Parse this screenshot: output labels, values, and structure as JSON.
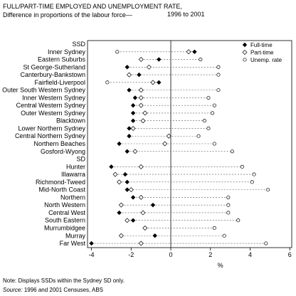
{
  "title_line1": "FULL/PART-TIME EMPLOYED AND UNEMPLOYMENT RATE,",
  "title_line2": "Difference in proportions of the labour force—",
  "period": "1996 to 2001",
  "note": "Note: Displays SSDs within the Sydney SD only.",
  "source_label": "Source:",
  "source_text": "1996 and 2001 Censuses, ABS",
  "chart_data": {
    "type": "scatter",
    "xlabel": "%",
    "xlim": [
      -4.2,
      6.1
    ],
    "xticks": [
      -4,
      -2,
      0,
      2,
      4,
      6
    ],
    "grid": false,
    "legend_position": "top-right",
    "categories": [
      "SSD",
      "Inner Sydney",
      "Eastern Suburbs",
      "St George-Sutherland",
      "Canterbury-Bankstown",
      "Fairfield-Liverpool",
      "Outer South Western Sydney",
      "Inner Western Sydney",
      "Central Western Sydney",
      "Outer Western Sydney",
      "Blacktown",
      "Lower Northern Sydney",
      "Central Northern Sydney",
      "Northern Beaches",
      "Gosford-Wyong",
      "SD",
      "Hunter",
      "Illawarra",
      "Richmond-Tweed",
      "Mid-North Coast",
      "Northern",
      "North Western",
      "Central West",
      "South Eastern",
      "Murrumbidgee",
      "Murray",
      "Far West"
    ],
    "heading_rows": [
      "SSD",
      "SD"
    ],
    "series": [
      {
        "name": "Full-time",
        "marker": "filled-diamond",
        "color": "#000000",
        "values": [
          null,
          1.2,
          -0.6,
          -2.2,
          -1.6,
          -0.6,
          -2.1,
          -1.8,
          -1.9,
          -1.9,
          -1.9,
          -2.1,
          -2.1,
          -2.6,
          -2.2,
          null,
          -3.0,
          -2.3,
          -2.2,
          -2.2,
          -1.9,
          -0.9,
          -2.6,
          -1.9,
          -1.3,
          -0.8,
          -4.0
        ]
      },
      {
        "name": "Part-time",
        "marker": "open-diamond",
        "color": "#000000",
        "values": [
          null,
          0.9,
          -1.5,
          -1.1,
          -2.1,
          -0.9,
          -1.5,
          -1.5,
          -1.5,
          -1.3,
          -1.4,
          -1.9,
          -0.1,
          -0.3,
          -1.8,
          null,
          -1.5,
          -2.8,
          -2.6,
          -2.0,
          -1.5,
          -2.5,
          -1.4,
          -2.2,
          -1.3,
          -2.5,
          -1.5
        ]
      },
      {
        "name": "Unemp. rate",
        "marker": "open-circle",
        "color": "#000000",
        "values": [
          null,
          -2.7,
          1.5,
          2.4,
          2.4,
          -3.2,
          2.4,
          1.9,
          2.2,
          2.1,
          1.7,
          1.9,
          1.4,
          2.2,
          3.1,
          null,
          3.6,
          4.2,
          4.1,
          4.9,
          2.9,
          2.9,
          2.9,
          3.4,
          2.2,
          2.7,
          4.8
        ]
      }
    ]
  }
}
